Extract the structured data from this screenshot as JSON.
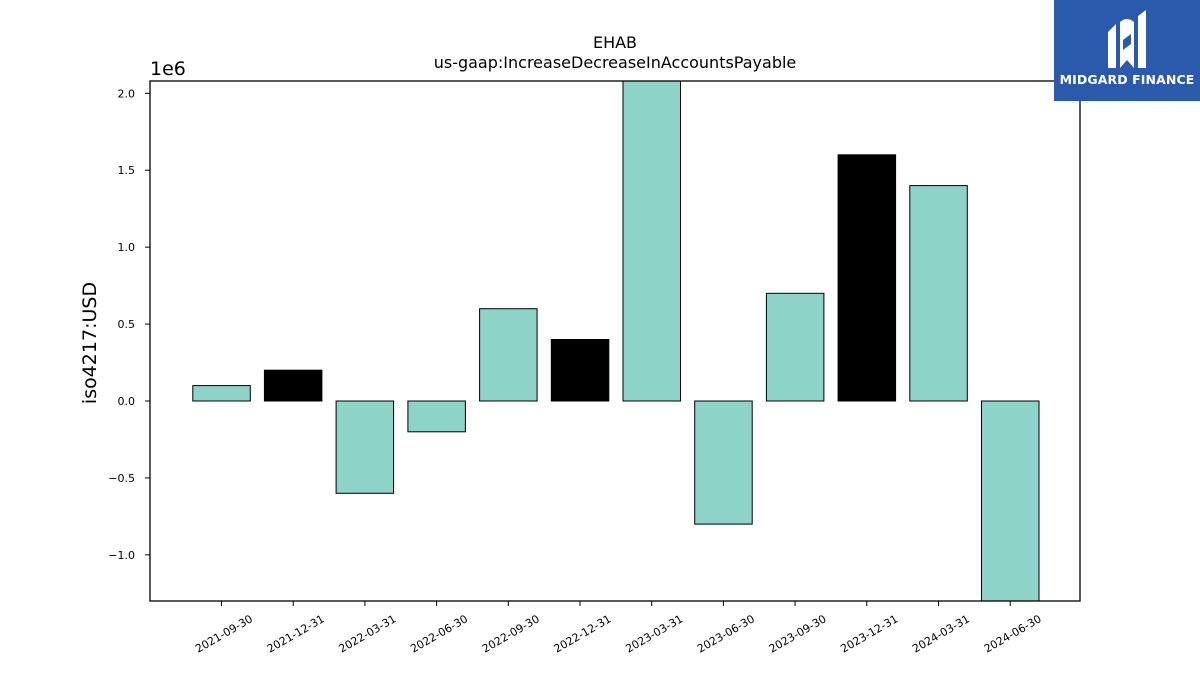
{
  "chart_data": {
    "type": "bar",
    "title": "EHAB",
    "subtitle": "us-gaap:IncreaseDecreaseInAccountsPayable",
    "ylabel": "iso4217:USD",
    "xlabel": "",
    "offset_label": "1e6",
    "ylim": [
      -1.3,
      2.08
    ],
    "yticks": [
      -1.0,
      -0.5,
      0.0,
      0.5,
      1.0,
      1.5,
      2.0
    ],
    "ytick_labels": [
      "−1.0",
      "−0.5",
      "0.0",
      "0.5",
      "1.0",
      "1.5",
      "2.0"
    ],
    "categories": [
      "2021-09-30",
      "2021-12-31",
      "2022-03-31",
      "2022-06-30",
      "2022-09-30",
      "2022-12-31",
      "2023-03-31",
      "2023-06-30",
      "2023-09-30",
      "2023-12-31",
      "2024-03-31",
      "2024-06-30"
    ],
    "values": [
      0.1,
      0.2,
      -0.6,
      -0.2,
      0.6,
      0.4,
      2.1,
      -0.8,
      0.7,
      1.6,
      1.4,
      -1.3
    ],
    "bar_colors": [
      "#8ed3c7",
      "#000000",
      "#8ed3c7",
      "#8ed3c7",
      "#8ed3c7",
      "#000000",
      "#8ed3c7",
      "#8ed3c7",
      "#8ed3c7",
      "#000000",
      "#8ed3c7",
      "#8ed3c7"
    ],
    "grid": false,
    "legend": "none"
  },
  "logo": {
    "text": "MIDGARD FINANCE",
    "background": "#2b5aad",
    "icon": "midgard-logo-icon"
  }
}
